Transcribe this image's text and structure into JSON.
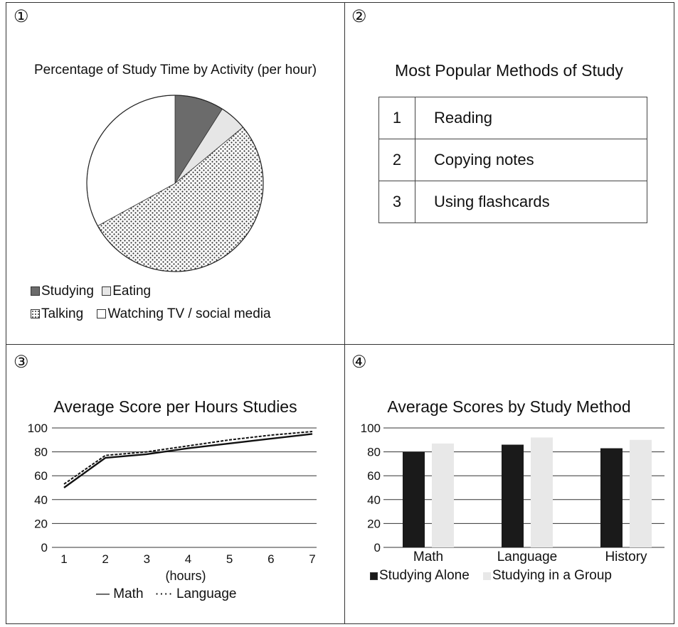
{
  "panels": [
    {
      "number": "①",
      "title": "Percentage of Study Time by Activity (per hour)"
    },
    {
      "number": "②",
      "title": "Most Popular Methods of Study"
    },
    {
      "number": "③",
      "title": "Average Score per Hours Studies"
    },
    {
      "number": "④",
      "title": "Average Scores by Study Method"
    }
  ],
  "table": {
    "rows": [
      {
        "rank": "1",
        "method": "Reading"
      },
      {
        "rank": "2",
        "method": "Copying notes"
      },
      {
        "rank": "3",
        "method": "Using flashcards"
      }
    ]
  },
  "pie_legend": {
    "studying": "Studying",
    "eating": "Eating",
    "talking": "Talking",
    "watching": "Watching TV / social media"
  },
  "line_legend": {
    "math": "— Math",
    "language": "···· Language"
  },
  "bar_legend": {
    "alone": "Studying Alone",
    "group": "Studying in a Group"
  },
  "colors": {
    "studying": "#6b6b6b",
    "eating": "#e6e6e6",
    "talking_dots": "#333333",
    "alone": "#1a1a1a",
    "group": "#e8e8e8"
  },
  "chart_data": [
    {
      "type": "pie",
      "title": "Percentage of Study Time by Activity (per hour)",
      "categories": [
        "Studying",
        "Eating",
        "Talking",
        "Watching TV / social media"
      ],
      "values": [
        9,
        5,
        53,
        33
      ],
      "unit": "%"
    },
    {
      "type": "table",
      "title": "Most Popular Methods of Study",
      "rows": [
        [
          "1",
          "Reading"
        ],
        [
          "2",
          "Copying notes"
        ],
        [
          "3",
          "Using flashcards"
        ]
      ]
    },
    {
      "type": "line",
      "title": "Average Score per Hours Studies",
      "xlabel": "(hours)",
      "ylabel": "",
      "x": [
        1,
        2,
        3,
        4,
        5,
        6,
        7
      ],
      "xticks": [
        "1",
        "2",
        "3",
        "4",
        "5",
        "6",
        "7"
      ],
      "yticks": [
        "0",
        "20",
        "40",
        "60",
        "80",
        "100"
      ],
      "ylim": [
        0,
        100
      ],
      "series": [
        {
          "name": "Math",
          "values": [
            50,
            75,
            78,
            83,
            87,
            91,
            95
          ],
          "style": "solid"
        },
        {
          "name": "Language",
          "values": [
            53,
            77,
            80,
            85,
            90,
            94,
            97
          ],
          "style": "dotted"
        }
      ],
      "grid": true,
      "legend": "bottom"
    },
    {
      "type": "bar",
      "title": "Average Scores by Study Method",
      "categories": [
        "Math",
        "Language",
        "History"
      ],
      "yticks": [
        "0",
        "20",
        "40",
        "60",
        "80",
        "100"
      ],
      "ylim": [
        0,
        100
      ],
      "series": [
        {
          "name": "Studying Alone",
          "values": [
            80,
            86,
            83
          ]
        },
        {
          "name": "Studying in a Group",
          "values": [
            87,
            92,
            90
          ]
        }
      ],
      "grid": true,
      "legend": "bottom"
    }
  ]
}
